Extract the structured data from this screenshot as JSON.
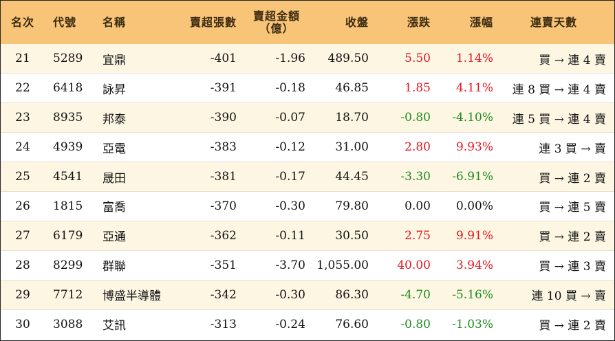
{
  "header": {
    "rank": "名次",
    "code": "代號",
    "name": "名稱",
    "net_sell_lots": "賣超張數",
    "net_sell_amount_line1": "賣超金額",
    "net_sell_amount_line2": "（億）",
    "close": "收盤",
    "change": "漲跌",
    "change_pct": "漲幅",
    "streak": "連賣天數"
  },
  "colors": {
    "header_bg": "#f8c477",
    "odd_row_bg": "#fdf6e3",
    "up": "#e3141d",
    "down": "#1e8a1e"
  },
  "rows": [
    {
      "rank": "21",
      "code": "5289",
      "name": "宜鼎",
      "lots": "-401",
      "amount": "-1.96",
      "close": "489.50",
      "change": "5.50",
      "pct": "1.14%",
      "trend": "up",
      "streak": "買 → 連 4 賣"
    },
    {
      "rank": "22",
      "code": "6418",
      "name": "詠昇",
      "lots": "-391",
      "amount": "-0.18",
      "close": "46.85",
      "change": "1.85",
      "pct": "4.11%",
      "trend": "up",
      "streak": "連 8 買 → 連 4 賣"
    },
    {
      "rank": "23",
      "code": "8935",
      "name": "邦泰",
      "lots": "-390",
      "amount": "-0.07",
      "close": "18.70",
      "change": "-0.80",
      "pct": "-4.10%",
      "trend": "down",
      "streak": "連 5 買 → 連 4 賣"
    },
    {
      "rank": "24",
      "code": "4939",
      "name": "亞電",
      "lots": "-383",
      "amount": "-0.12",
      "close": "31.00",
      "change": "2.80",
      "pct": "9.93%",
      "trend": "up",
      "streak": "連 3 買 → 賣"
    },
    {
      "rank": "25",
      "code": "4541",
      "name": "晟田",
      "lots": "-381",
      "amount": "-0.17",
      "close": "44.45",
      "change": "-3.30",
      "pct": "-6.91%",
      "trend": "down",
      "streak": "買 → 連 2 賣"
    },
    {
      "rank": "26",
      "code": "1815",
      "name": "富喬",
      "lots": "-370",
      "amount": "-0.30",
      "close": "79.80",
      "change": "0.00",
      "pct": "0.00%",
      "trend": "flat",
      "streak": "買 → 連 5 賣"
    },
    {
      "rank": "27",
      "code": "6179",
      "name": "亞通",
      "lots": "-362",
      "amount": "-0.11",
      "close": "30.50",
      "change": "2.75",
      "pct": "9.91%",
      "trend": "up",
      "streak": "買 → 連 2 賣"
    },
    {
      "rank": "28",
      "code": "8299",
      "name": "群聯",
      "lots": "-351",
      "amount": "-3.70",
      "close": "1,055.00",
      "change": "40.00",
      "pct": "3.94%",
      "trend": "up",
      "streak": "買 → 連 3 賣"
    },
    {
      "rank": "29",
      "code": "7712",
      "name": "博盛半導體",
      "lots": "-342",
      "amount": "-0.30",
      "close": "86.30",
      "change": "-4.70",
      "pct": "-5.16%",
      "trend": "down",
      "streak": "連 10 買 → 賣"
    },
    {
      "rank": "30",
      "code": "3088",
      "name": "艾訊",
      "lots": "-313",
      "amount": "-0.24",
      "close": "76.60",
      "change": "-0.80",
      "pct": "-1.03%",
      "trend": "down",
      "streak": "買 → 連 2 賣"
    }
  ]
}
